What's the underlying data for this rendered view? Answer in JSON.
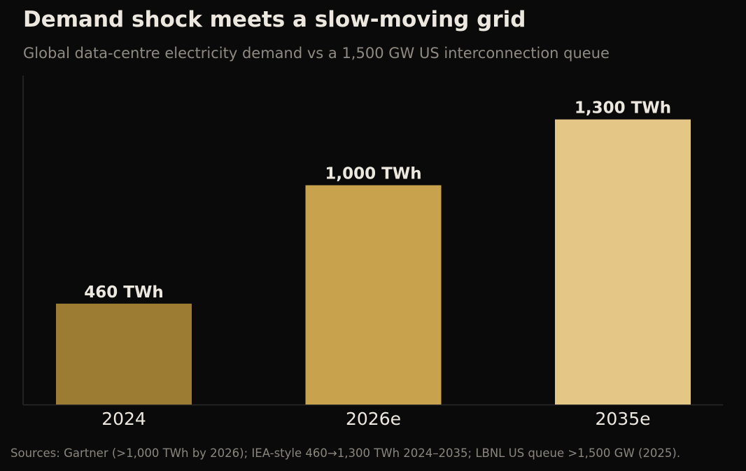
{
  "chart_data": {
    "type": "bar",
    "title": "Demand shock meets a slow-moving grid",
    "subtitle": "Global data-centre electricity demand vs a 1,500 GW US interconnection queue",
    "categories": [
      "2024",
      "2026e",
      "2035e"
    ],
    "values": [
      460,
      1000,
      1300
    ],
    "value_labels": [
      "460 TWh",
      "1,000 TWh",
      "1,300 TWh"
    ],
    "unit": "TWh",
    "ylim": [
      0,
      1500
    ],
    "grid": false,
    "bar_colors": [
      "#9c7c32",
      "#c9a24d",
      "#e4c687"
    ],
    "background": "#0a0a0a",
    "source": "Sources: Gartner (>1,000 TWh by 2026); IEA-style 460→1,300 TWh 2024–2035; LBNL US queue >1,500 GW (2025)."
  }
}
